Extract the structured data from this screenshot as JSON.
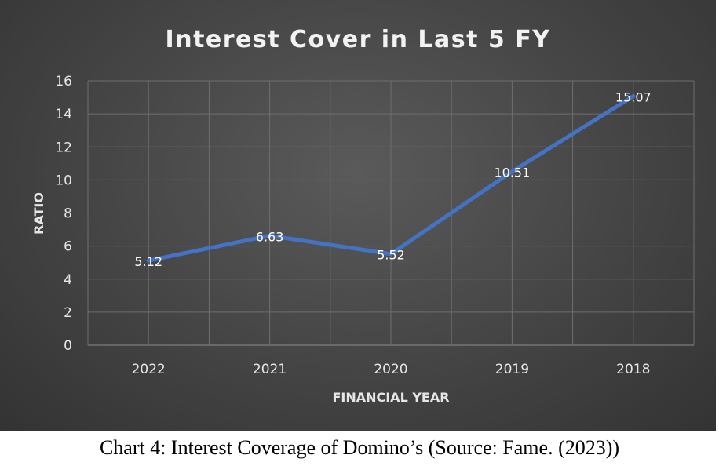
{
  "chart_data": {
    "type": "line",
    "title": "Interest Cover in Last 5 FY",
    "xlabel": "FINANCIAL YEAR",
    "ylabel": "RATIO",
    "categories": [
      "2022",
      "2021",
      "2020",
      "2019",
      "2018"
    ],
    "series": [
      {
        "values": [
          5.12,
          6.63,
          5.52,
          10.51,
          15.07
        ],
        "color": "#4472c4"
      }
    ],
    "data_labels": [
      "5.12",
      "6.63",
      "5.52",
      "10.51",
      "15.07"
    ],
    "ylim": [
      0,
      16
    ],
    "yticks": [
      "0",
      "2",
      "4",
      "6",
      "8",
      "10",
      "12",
      "14",
      "16"
    ],
    "grid": true
  },
  "caption": "Chart 4: Interest Coverage of Domino’s (Source: Fame. (2023))"
}
